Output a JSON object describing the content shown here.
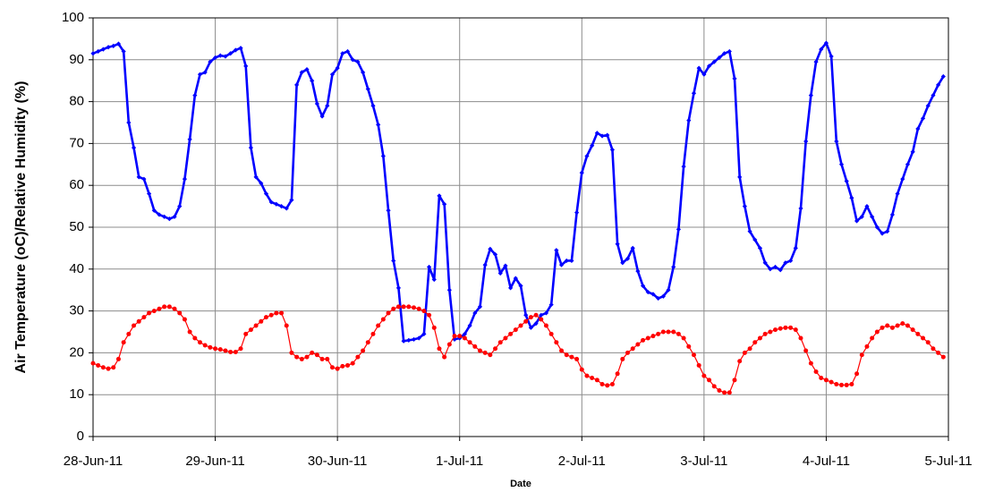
{
  "chart_data": {
    "type": "line",
    "xlabel": "Date",
    "ylabel": "Air Temperature (oC)/Relative Humidity (%)",
    "x": [
      0,
      1,
      2,
      3,
      4,
      5,
      6,
      7,
      8,
      9,
      10,
      11,
      12,
      13,
      14,
      15,
      16,
      17,
      18,
      19,
      20,
      21,
      22,
      23,
      24,
      25,
      26,
      27,
      28,
      29,
      30,
      31,
      32,
      33,
      34,
      35,
      36,
      37,
      38,
      39,
      40,
      41,
      42,
      43,
      44,
      45,
      46,
      47,
      48,
      49,
      50,
      51,
      52,
      53,
      54,
      55,
      56,
      57,
      58,
      59,
      60,
      61,
      62,
      63,
      64,
      65,
      66,
      67,
      68,
      69,
      70,
      71,
      72,
      73,
      74,
      75,
      76,
      77,
      78,
      79,
      80,
      81,
      82,
      83,
      84,
      85,
      86,
      87,
      88,
      89,
      90,
      91,
      92,
      93,
      94,
      95,
      96,
      97,
      98,
      99,
      100,
      101,
      102,
      103,
      104,
      105,
      106,
      107,
      108,
      109,
      110,
      111,
      112,
      113,
      114,
      115,
      116,
      117,
      118,
      119,
      120,
      121,
      122,
      123,
      124,
      125,
      126,
      127,
      128,
      129,
      130,
      131,
      132,
      133,
      134,
      135,
      136,
      137,
      138,
      139,
      140,
      141,
      142,
      143,
      144,
      145,
      146,
      147,
      148,
      149,
      150,
      151,
      152,
      153,
      154,
      155,
      156,
      157,
      158,
      159,
      160,
      161,
      162,
      163,
      164,
      165,
      166,
      167
    ],
    "series": [
      {
        "color": "#0000ff",
        "marker": "diamond",
        "values": [
          91.5,
          92,
          92.5,
          93,
          93.3,
          93.8,
          92,
          75,
          69,
          62,
          61.5,
          58,
          54,
          53,
          52.5,
          52,
          52.5,
          55,
          61.5,
          71,
          81.5,
          86.5,
          87,
          89.5,
          90.5,
          91,
          90.8,
          91.5,
          92.3,
          92.8,
          88.5,
          69,
          62,
          60.5,
          58,
          56,
          55.5,
          55,
          54.5,
          56.5,
          84,
          87,
          87.7,
          85,
          79.5,
          76.5,
          79,
          86.5,
          88,
          91.5,
          92,
          90,
          89.5,
          87,
          83,
          79,
          74.5,
          67,
          54,
          42,
          35.5,
          22.8,
          23,
          23.2,
          23.5,
          24.5,
          40.5,
          37.5,
          57.5,
          55.5,
          35,
          23.2,
          23.5,
          24.5,
          26.5,
          29.5,
          31,
          41,
          44.8,
          43.5,
          39,
          40.8,
          35.5,
          37.8,
          36,
          29,
          26,
          27,
          29,
          29.5,
          31.5,
          44.5,
          41,
          42,
          42,
          53.5,
          63,
          67,
          69.5,
          72.5,
          71.8,
          72,
          68.5,
          46,
          41.5,
          42.5,
          45,
          39.5,
          36,
          34.5,
          34,
          33,
          33.5,
          35,
          40.5,
          49.5,
          64.5,
          75.5,
          82,
          88,
          86.5,
          88.5,
          89.5,
          90.5,
          91.5,
          92,
          85.5,
          62,
          55,
          49,
          47,
          45,
          41.5,
          40,
          40.5,
          39.8,
          41.5,
          42,
          45,
          54.5,
          70.5,
          81.5,
          89.5,
          92.5,
          94,
          90.8,
          70.5,
          65,
          61,
          57,
          51.5,
          52.5,
          55,
          52.5,
          50,
          48.5,
          49,
          53,
          58,
          61.5,
          65,
          68,
          73.5,
          76,
          79,
          81.5,
          84,
          86
        ]
      },
      {
        "color": "#ff0000",
        "marker": "circle",
        "values": [
          17.5,
          17,
          16.5,
          16.2,
          16.5,
          18.5,
          22.5,
          24.5,
          26.5,
          27.5,
          28.5,
          29.5,
          30,
          30.5,
          31,
          31,
          30.5,
          29.5,
          28,
          25,
          23.5,
          22.5,
          21.8,
          21.3,
          21,
          20.8,
          20.5,
          20.2,
          20.2,
          21,
          24.5,
          25.5,
          26.5,
          27.5,
          28.5,
          29,
          29.5,
          29.5,
          26.5,
          20,
          19,
          18.5,
          19,
          20,
          19.5,
          18.5,
          18.5,
          16.5,
          16.2,
          16.8,
          17,
          17.5,
          19,
          20.5,
          22.5,
          24.5,
          26.5,
          28,
          29.5,
          30.5,
          31,
          31,
          31,
          30.8,
          30.5,
          30,
          29,
          26,
          21,
          19,
          22,
          24,
          24,
          23.5,
          22.5,
          21.5,
          20.5,
          20,
          19.5,
          21,
          22.5,
          23.5,
          24.5,
          25.5,
          26.5,
          27.5,
          28.5,
          29,
          28,
          26.5,
          24.5,
          22.5,
          20.5,
          19.5,
          19,
          18.5,
          16,
          14.5,
          14,
          13.5,
          12.5,
          12.2,
          12.5,
          15,
          18.5,
          20,
          21,
          22,
          23,
          23.5,
          24,
          24.5,
          25,
          25,
          25,
          24.5,
          23.5,
          21.5,
          19.5,
          17,
          14.5,
          13.5,
          12,
          11,
          10.5,
          10.5,
          13.5,
          18,
          20,
          21,
          22.5,
          23.5,
          24.5,
          25,
          25.5,
          25.8,
          26,
          26,
          25.5,
          23.5,
          20.5,
          17.5,
          15.5,
          14,
          13.5,
          13,
          12.5,
          12.3,
          12.3,
          12.5,
          15,
          19.5,
          21.5,
          23.5,
          25,
          26,
          26.5,
          26,
          26.5,
          27,
          26.5,
          25.5,
          24.5,
          23.5,
          22.5,
          21,
          20,
          19
        ]
      }
    ],
    "xlim": [
      0,
      168
    ],
    "xticks": [
      {
        "value": 0,
        "label": "28-Jun-11"
      },
      {
        "value": 24,
        "label": "29-Jun-11"
      },
      {
        "value": 48,
        "label": "30-Jun-11"
      },
      {
        "value": 72,
        "label": "1-Jul-11"
      },
      {
        "value": 96,
        "label": "2-Jul-11"
      },
      {
        "value": 120,
        "label": "3-Jul-11"
      },
      {
        "value": 144,
        "label": "4-Jul-11"
      },
      {
        "value": 168,
        "label": "5-Jul-11"
      }
    ],
    "ylim": [
      0,
      100
    ],
    "yticks": [
      0,
      10,
      20,
      30,
      40,
      50,
      60,
      70,
      80,
      90,
      100
    ],
    "grid": true
  }
}
